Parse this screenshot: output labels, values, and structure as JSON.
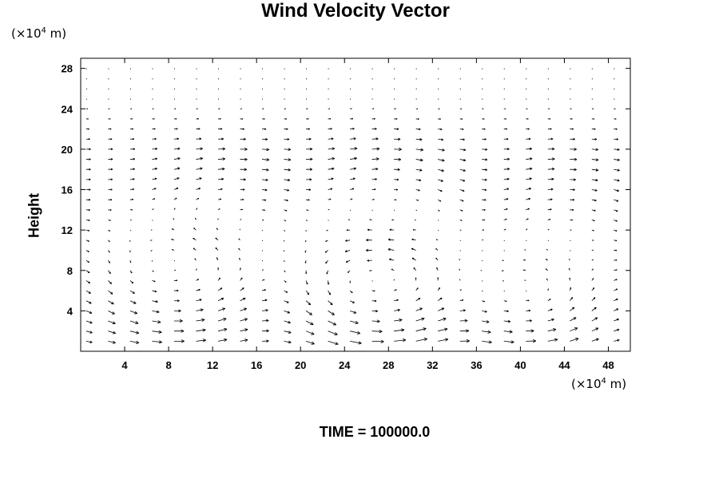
{
  "chart_data": {
    "type": "vector_field",
    "title": "Wind Velocity Vector",
    "ylabel": "Height",
    "y_unit": {
      "prefix": "(×10",
      "exp": "4",
      "suffix": " m)"
    },
    "x_unit": {
      "prefix": "(×10",
      "exp": "4",
      "suffix": " m)"
    },
    "time_label": "TIME = 100000.0",
    "xlim": [
      0,
      50
    ],
    "ylim": [
      0,
      29
    ],
    "xticks": [
      4,
      8,
      12,
      16,
      20,
      24,
      28,
      32,
      36,
      40,
      44,
      48
    ],
    "yticks": [
      4,
      8,
      12,
      16,
      20,
      24,
      28
    ],
    "grid": false,
    "vortices": [
      {
        "cx": 8.5,
        "cy": 6,
        "strength": 3.2,
        "rx": 6.5,
        "ry": 5.5
      },
      {
        "cx": 27,
        "cy": 5,
        "strength": 4.5,
        "rx": 6.5,
        "ry": 5.5
      },
      {
        "cx": 40.5,
        "cy": 4,
        "strength": 3.5,
        "rx": 5.5,
        "ry": 4.5
      },
      {
        "cx": 14,
        "cy": 15,
        "strength": -1.6,
        "rx": 6,
        "ry": 5
      },
      {
        "cx": 28,
        "cy": 16,
        "strength": -1.8,
        "rx": 6,
        "ry": 5
      },
      {
        "cx": 44,
        "cy": 15,
        "strength": -1.4,
        "rx": 5,
        "ry": 4.5
      }
    ],
    "background_flow": {
      "u": 0.8,
      "v": 0
    },
    "grid_spacing": {
      "dx": 1.0,
      "dy": 1.0
    }
  }
}
